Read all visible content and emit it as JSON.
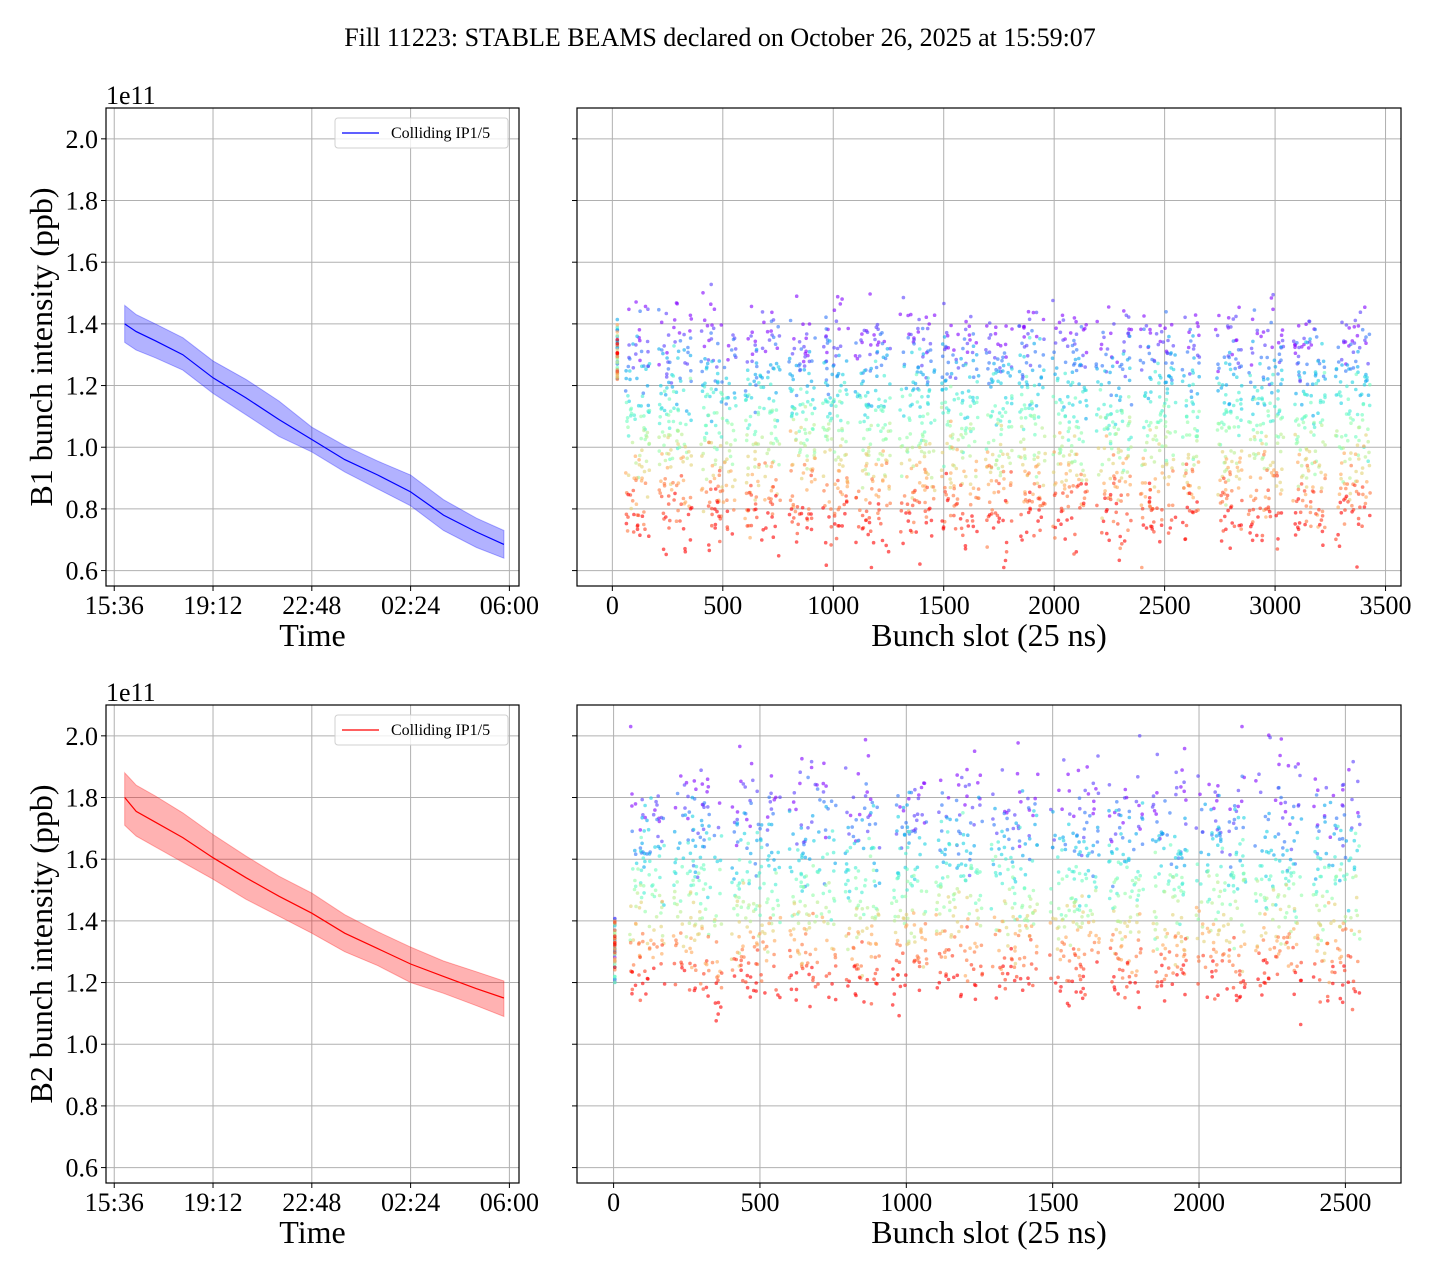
{
  "figure_title": "Fill 11223: STABLE BEAMS declared on October 26, 2025 at 15:59:07",
  "chart_data": [
    {
      "id": "b1-time",
      "type": "line",
      "title": "",
      "xlabel": "Time",
      "ylabel": "B1 bunch intensity (ppb)",
      "y_offset_label": "1e11",
      "y_scale": 100000000000.0,
      "ylim": [
        0.55,
        2.1
      ],
      "yticks": [
        0.6,
        0.8,
        1.0,
        1.2,
        1.4,
        1.6,
        1.8,
        2.0
      ],
      "ytick_labels": [
        "0.6",
        "0.8",
        "1.0",
        "1.2",
        "1.4",
        "1.6",
        "1.8",
        "2.0"
      ],
      "xlim_hours": [
        -0.3,
        14.75
      ],
      "xticks_hours": [
        0,
        3.6,
        7.2,
        10.8,
        14.4
      ],
      "xtick_labels": [
        "15:36",
        "19:12",
        "22:48",
        "02:24",
        "06:00"
      ],
      "grid": true,
      "legend": {
        "placement": "top-right",
        "entries": [
          {
            "label": "Colliding IP1/5",
            "color": "#0000ff"
          }
        ]
      },
      "series": [
        {
          "name": "Colliding IP1/5",
          "color": "#0000ff",
          "band_color": "#0000ff",
          "band_alpha": 0.3,
          "x_hours": [
            0.38,
            0.8,
            1.5,
            2.5,
            3.6,
            4.8,
            6.0,
            7.2,
            8.4,
            9.6,
            10.8,
            12.0,
            13.2,
            14.2
          ],
          "mean": [
            1.4,
            1.375,
            1.345,
            1.3,
            1.225,
            1.16,
            1.09,
            1.025,
            0.96,
            0.91,
            0.855,
            0.78,
            0.725,
            0.685
          ],
          "upper": [
            1.46,
            1.43,
            1.4,
            1.355,
            1.28,
            1.22,
            1.15,
            1.065,
            1.005,
            0.955,
            0.91,
            0.83,
            0.77,
            0.73
          ],
          "lower": [
            1.34,
            1.315,
            1.29,
            1.25,
            1.175,
            1.105,
            1.035,
            0.985,
            0.92,
            0.865,
            0.81,
            0.73,
            0.675,
            0.64
          ]
        }
      ]
    },
    {
      "id": "b1-slots",
      "type": "scatter",
      "title": "",
      "xlabel": "Bunch slot (25 ns)",
      "ylabel": "",
      "y_scale": 100000000000.0,
      "ylim": [
        0.55,
        2.1
      ],
      "yticks": [
        0.6,
        0.8,
        1.0,
        1.2,
        1.4,
        1.6,
        1.8,
        2.0
      ],
      "xlim": [
        -160,
        3570
      ],
      "xticks": [
        0,
        500,
        1000,
        1500,
        2000,
        2500,
        3000,
        3500
      ],
      "xtick_labels": [
        "0",
        "500",
        "1000",
        "1500",
        "2000",
        "2500",
        "3000",
        "3500"
      ],
      "grid": true,
      "colormap": "rainbow (color encodes time: purple = start, red = end)",
      "pilot": {
        "slot_range": [
          15,
          30
        ],
        "ymin": 1.22,
        "ymax": 1.42
      },
      "trains": [
        [
          60,
          170
        ],
        [
          210,
          360
        ],
        [
          400,
          560
        ],
        [
          600,
          760
        ],
        [
          800,
          920
        ],
        [
          950,
          1070
        ],
        [
          1100,
          1260
        ],
        [
          1300,
          1460
        ],
        [
          1490,
          1660
        ],
        [
          1690,
          1810
        ],
        [
          1840,
          1960
        ],
        [
          1990,
          2150
        ],
        [
          2190,
          2350
        ],
        [
          2390,
          2550
        ],
        [
          2580,
          2660
        ],
        [
          2730,
          2850
        ],
        [
          2880,
          3040
        ],
        [
          3080,
          3230
        ],
        [
          3270,
          3430
        ]
      ],
      "start_level": {
        "min": 1.3,
        "max": 1.45,
        "outlier_max": 1.6
      },
      "end_level": {
        "min": 0.68,
        "max": 0.82,
        "outlier_min": 0.61
      }
    },
    {
      "id": "b2-time",
      "type": "line",
      "title": "",
      "xlabel": "Time",
      "ylabel": "B2 bunch intensity (ppb)",
      "y_offset_label": "1e11",
      "y_scale": 100000000000.0,
      "ylim": [
        0.55,
        2.1
      ],
      "yticks": [
        0.6,
        0.8,
        1.0,
        1.2,
        1.4,
        1.6,
        1.8,
        2.0
      ],
      "ytick_labels": [
        "0.6",
        "0.8",
        "1.0",
        "1.2",
        "1.4",
        "1.6",
        "1.8",
        "2.0"
      ],
      "xlim_hours": [
        -0.3,
        14.75
      ],
      "xticks_hours": [
        0,
        3.6,
        7.2,
        10.8,
        14.4
      ],
      "xtick_labels": [
        "15:36",
        "19:12",
        "22:48",
        "02:24",
        "06:00"
      ],
      "grid": true,
      "legend": {
        "placement": "top-right",
        "entries": [
          {
            "label": "Colliding IP1/5",
            "color": "#ff0000"
          }
        ]
      },
      "series": [
        {
          "name": "Colliding IP1/5",
          "color": "#ff0000",
          "band_color": "#ff0000",
          "band_alpha": 0.3,
          "x_hours": [
            0.38,
            0.8,
            1.5,
            2.5,
            3.6,
            4.8,
            6.0,
            7.2,
            8.4,
            9.6,
            10.8,
            12.0,
            13.2,
            14.2
          ],
          "mean": [
            1.8,
            1.755,
            1.72,
            1.67,
            1.605,
            1.54,
            1.48,
            1.425,
            1.36,
            1.31,
            1.26,
            1.22,
            1.18,
            1.15
          ],
          "upper": [
            1.88,
            1.84,
            1.805,
            1.75,
            1.68,
            1.61,
            1.545,
            1.49,
            1.42,
            1.365,
            1.315,
            1.27,
            1.235,
            1.205
          ],
          "lower": [
            1.71,
            1.675,
            1.64,
            1.59,
            1.535,
            1.47,
            1.415,
            1.36,
            1.3,
            1.255,
            1.2,
            1.165,
            1.125,
            1.09
          ]
        }
      ]
    },
    {
      "id": "b2-slots",
      "type": "scatter",
      "title": "",
      "xlabel": "Bunch slot (25 ns)",
      "ylabel": "",
      "y_scale": 100000000000.0,
      "ylim": [
        0.55,
        2.1
      ],
      "yticks": [
        0.6,
        0.8,
        1.0,
        1.2,
        1.4,
        1.6,
        1.8,
        2.0
      ],
      "xlim": [
        -125,
        2690
      ],
      "xticks": [
        0,
        500,
        1000,
        1500,
        2000,
        2500
      ],
      "xtick_labels": [
        "0",
        "500",
        "1000",
        "1500",
        "2000",
        "2500"
      ],
      "grid": true,
      "colormap": "rainbow (color encodes time: purple = start, red = end)",
      "pilot": {
        "slot_range": [
          0,
          8
        ],
        "ymin": 1.2,
        "ymax": 1.41
      },
      "trains": [
        [
          55,
          175
        ],
        [
          205,
          370
        ],
        [
          400,
          570
        ],
        [
          600,
          760
        ],
        [
          790,
          910
        ],
        [
          950,
          1070
        ],
        [
          1100,
          1260
        ],
        [
          1290,
          1450
        ],
        [
          1490,
          1660
        ],
        [
          1690,
          1810
        ],
        [
          1840,
          1960
        ],
        [
          1990,
          2160
        ],
        [
          2190,
          2350
        ],
        [
          2390,
          2550
        ]
      ],
      "start_level": {
        "min": 1.7,
        "max": 1.9,
        "outlier_max": 2.03
      },
      "end_level": {
        "min": 1.14,
        "max": 1.25,
        "outlier_min": 1.02
      }
    }
  ]
}
